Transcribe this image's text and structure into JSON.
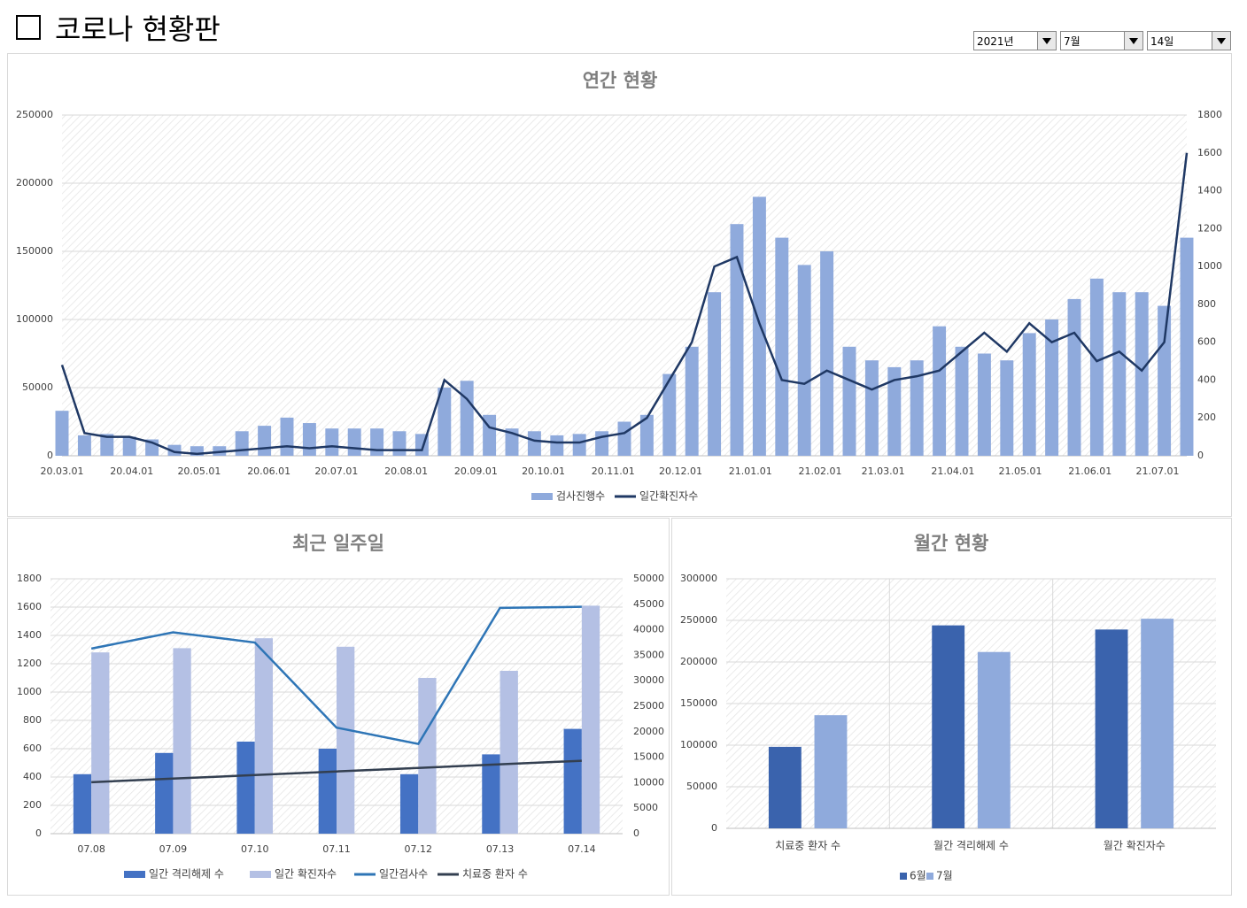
{
  "header": {
    "title": "코로나 현황판"
  },
  "filters": {
    "year": "2021년",
    "month": "7월",
    "day": "14일"
  },
  "chart_data": [
    {
      "type": "combo",
      "title": "연간 현황",
      "x": [
        0,
        10,
        20,
        30,
        40,
        50,
        60,
        70,
        80,
        90,
        100,
        110,
        120,
        130,
        140,
        150,
        160,
        170,
        180,
        190,
        200,
        210,
        220,
        230,
        240,
        250,
        260,
        270,
        280,
        290,
        300,
        310,
        320,
        330,
        340,
        350,
        360,
        370,
        380,
        390,
        400,
        410,
        420,
        430,
        440,
        450,
        460,
        470,
        480,
        490,
        500
      ],
      "xlim": [
        0,
        500
      ],
      "xticks": [
        {
          "value": 0,
          "label": "20.03.01"
        },
        {
          "value": 31,
          "label": "20.04.01"
        },
        {
          "value": 61,
          "label": "20.05.01"
        },
        {
          "value": 92,
          "label": "20.06.01"
        },
        {
          "value": 122,
          "label": "20.07.01"
        },
        {
          "value": 153,
          "label": "20.08.01"
        },
        {
          "value": 184,
          "label": "20.09.01"
        },
        {
          "value": 214,
          "label": "20.10.01"
        },
        {
          "value": 245,
          "label": "20.11.01"
        },
        {
          "value": 275,
          "label": "20.12.01"
        },
        {
          "value": 306,
          "label": "21.01.01"
        },
        {
          "value": 337,
          "label": "21.02.01"
        },
        {
          "value": 365,
          "label": "21.03.01"
        },
        {
          "value": 396,
          "label": "21.04.01"
        },
        {
          "value": 426,
          "label": "21.05.01"
        },
        {
          "value": 457,
          "label": "21.06.01"
        },
        {
          "value": 487,
          "label": "21.07.01"
        }
      ],
      "ylim": [
        0,
        250000
      ],
      "yticks": [
        0,
        50000,
        100000,
        150000,
        200000,
        250000
      ],
      "y2lim": [
        0,
        1800
      ],
      "y2ticks": [
        0,
        200,
        400,
        600,
        800,
        1000,
        1200,
        1400,
        1600,
        1800
      ],
      "grid": true,
      "series": [
        {
          "name": "검사진행수",
          "type": "bar",
          "color": "#8faadc",
          "values": [
            33000,
            15000,
            16000,
            14000,
            12000,
            8000,
            7000,
            7000,
            18000,
            22000,
            28000,
            24000,
            20000,
            20000,
            20000,
            18000,
            16000,
            50000,
            55000,
            30000,
            20000,
            18000,
            15000,
            16000,
            18000,
            25000,
            30000,
            60000,
            80000,
            120000,
            170000,
            190000,
            160000,
            140000,
            150000,
            80000,
            70000,
            65000,
            70000,
            95000,
            80000,
            75000,
            70000,
            90000,
            100000,
            115000,
            130000,
            120000,
            120000,
            110000,
            160000
          ]
        },
        {
          "name": "일간확진자수",
          "type": "line",
          "axis": "y2",
          "color": "#1f3864",
          "values": [
            480,
            120,
            100,
            100,
            70,
            20,
            10,
            20,
            30,
            40,
            50,
            40,
            50,
            40,
            30,
            30,
            30,
            400,
            300,
            150,
            120,
            80,
            70,
            70,
            100,
            120,
            200,
            400,
            600,
            1000,
            1050,
            700,
            400,
            380,
            450,
            400,
            350,
            400,
            420,
            450,
            550,
            650,
            550,
            700,
            600,
            650,
            500,
            550,
            450,
            600,
            1600
          ]
        }
      ]
    },
    {
      "type": "combo",
      "title": "최근 일주일",
      "categories": [
        "07.08",
        "07.09",
        "07.10",
        "07.11",
        "07.12",
        "07.13",
        "07.14"
      ],
      "ylim": [
        0,
        1800
      ],
      "yticks": [
        0,
        200,
        400,
        600,
        800,
        1000,
        1200,
        1400,
        1600,
        1800
      ],
      "y2lim": [
        0,
        50000
      ],
      "y2ticks": [
        0,
        5000,
        10000,
        15000,
        20000,
        25000,
        30000,
        35000,
        40000,
        45000,
        50000
      ],
      "grid": true,
      "series": [
        {
          "name": "일간 격리해제 수",
          "type": "bar",
          "color": "#4472c4",
          "values": [
            420,
            570,
            650,
            600,
            420,
            560,
            740
          ]
        },
        {
          "name": "일간 확진자수",
          "type": "bar",
          "color": "#b4c0e4",
          "values": [
            1280,
            1310,
            1380,
            1320,
            1100,
            1150,
            1610
          ]
        },
        {
          "name": "일간검사수",
          "type": "line",
          "axis": "y2",
          "color": "#2e75b6",
          "values": [
            36300,
            39500,
            37500,
            20800,
            17600,
            44300,
            44500
          ]
        },
        {
          "name": "치료중 환자 수",
          "type": "line",
          "axis": "y2",
          "color": "#333f50",
          "values": [
            10100,
            10800,
            11500,
            12200,
            12900,
            13600,
            14300
          ]
        }
      ]
    },
    {
      "type": "bar",
      "title": "월간 현황",
      "categories": [
        "치료중 환자 수",
        "월간 격리해제 수",
        "월간 확진자수"
      ],
      "ylim": [
        0,
        300000
      ],
      "yticks": [
        0,
        50000,
        100000,
        150000,
        200000,
        250000,
        300000
      ],
      "grid": true,
      "series": [
        {
          "name": "6월",
          "type": "bar",
          "color": "#3a63ad",
          "values": [
            98000,
            244000,
            239000
          ]
        },
        {
          "name": "7월",
          "type": "bar",
          "color": "#8faadc",
          "values": [
            136000,
            212000,
            252000
          ]
        }
      ]
    }
  ]
}
